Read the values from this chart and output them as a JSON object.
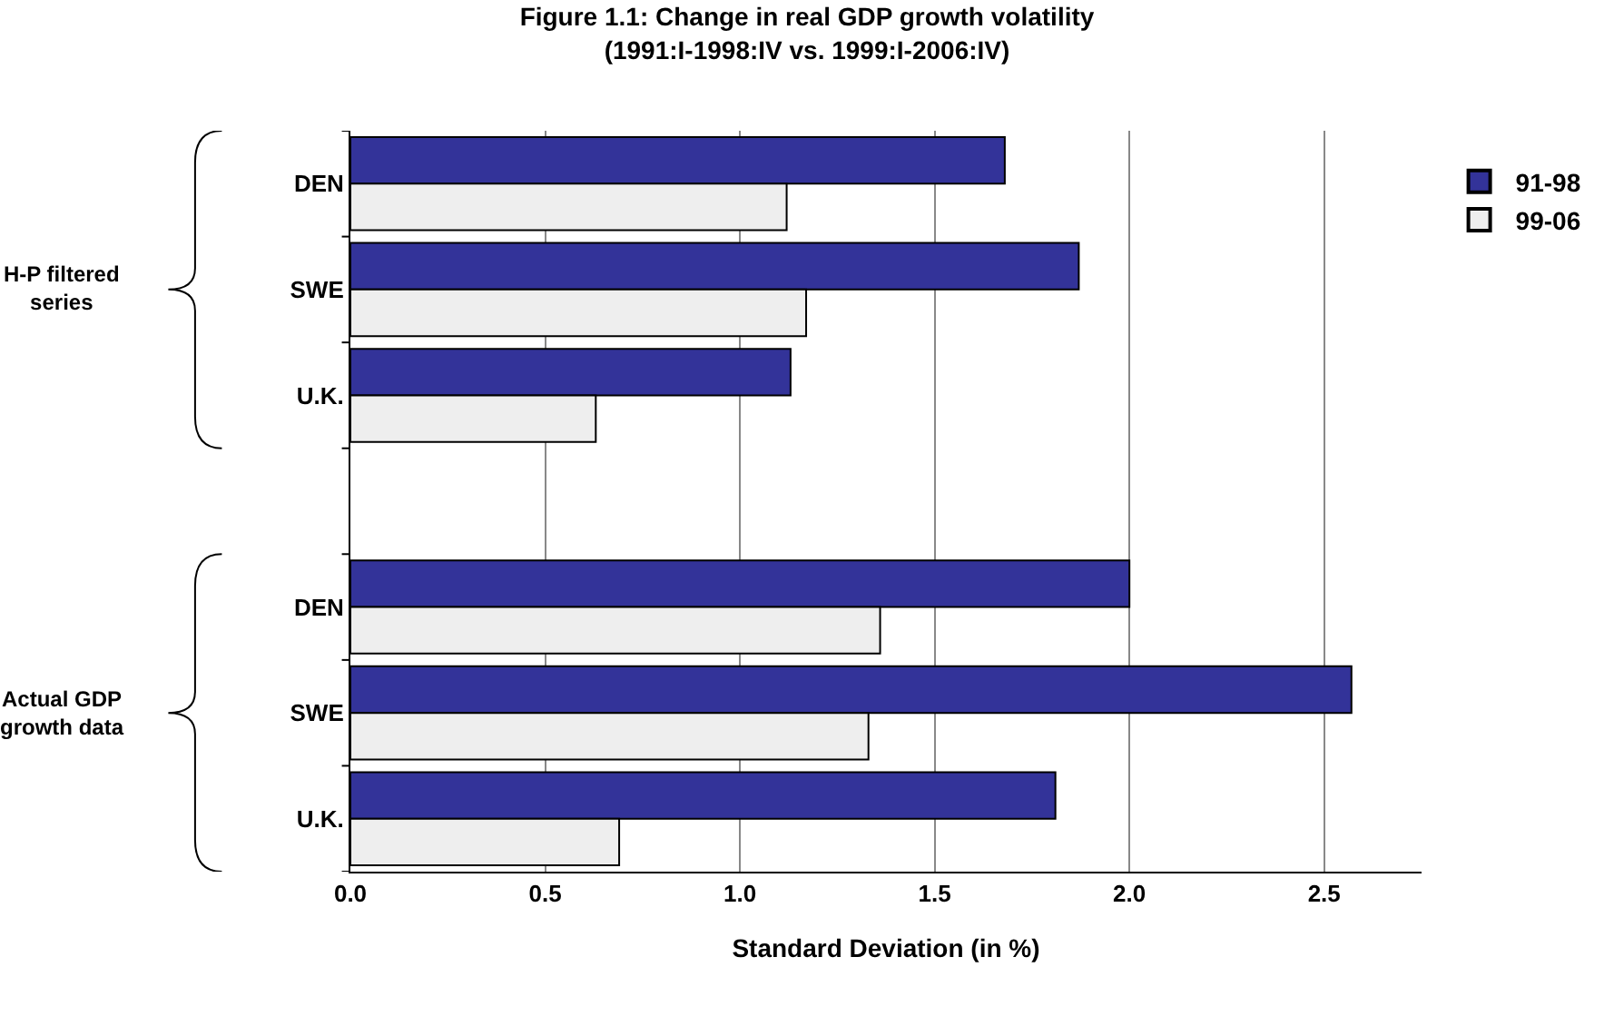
{
  "chart_data": {
    "type": "bar",
    "orientation": "horizontal",
    "title": "Figure 1.1: Change in real GDP growth volatility\n(1991:I-1998:IV vs. 1999:I-2006:IV)",
    "xlabel": "Standard Deviation (in %)",
    "categories": [
      "DEN",
      "SWE",
      "U.K.",
      null,
      "DEN",
      "SWE",
      "U.K."
    ],
    "series": [
      {
        "name": "91-98",
        "color": "#333399",
        "values": [
          1.68,
          1.87,
          1.13,
          null,
          2.0,
          2.57,
          1.81
        ]
      },
      {
        "name": "99-06",
        "color": "#eeeeee",
        "values": [
          1.12,
          1.17,
          0.63,
          null,
          1.36,
          1.33,
          0.69
        ]
      }
    ],
    "annotations": [
      "H-P filtered\nseries",
      "Actual GDP\ngrowth data"
    ],
    "xlim": [
      0,
      2.75
    ],
    "xticks": [
      {
        "value": 0,
        "label": "0.0"
      },
      0.5,
      {
        "value": 1,
        "label": "1.0"
      },
      1.5,
      {
        "value": 2,
        "label": "2.0"
      },
      2.5
    ],
    "grid": "x",
    "legend": "top right"
  }
}
